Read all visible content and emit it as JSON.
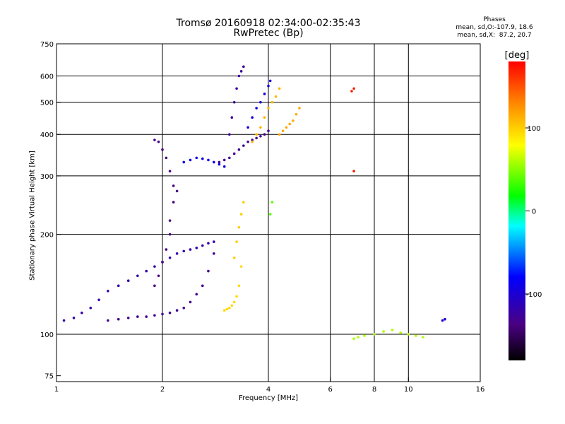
{
  "chart_data": {
    "type": "scatter",
    "title": "Tromsø 20160918 02:34:00-02:35:43",
    "subtitle": "RwPretec (Bp)",
    "xlabel": "Frequency [MHz]",
    "ylabel": "Stationary phase Virtual Height [km]",
    "x_scale": "log",
    "y_scale": "log",
    "xlim": [
      1,
      16
    ],
    "ylim": [
      72,
      750
    ],
    "x_ticks": [
      1,
      2,
      4,
      6,
      8,
      10,
      16
    ],
    "y_ticks": [
      75,
      100,
      200,
      300,
      400,
      500,
      600,
      750
    ],
    "grid_x": [
      2,
      4,
      6,
      8,
      10
    ],
    "grid_y": [
      100,
      200,
      300,
      400,
      500,
      600
    ],
    "grid": true,
    "stats": {
      "title": "Phases",
      "line_o": "mean, sd,O:-107.9, 18.6",
      "line_x": "mean, sd,X:  87.2, 20.7"
    },
    "colorbar": {
      "label": "[deg]",
      "ticks": [
        100,
        0,
        -100
      ],
      "range": [
        -180,
        180
      ]
    },
    "series": [
      {
        "x": [
          1.05,
          1.12,
          1.18,
          1.25,
          1.32,
          1.4,
          1.5,
          1.6,
          1.7,
          1.8,
          1.9,
          2.0,
          2.1,
          2.2,
          2.3,
          2.4,
          2.5,
          2.6,
          2.7,
          2.8
        ],
        "y": [
          110,
          112,
          116,
          120,
          127,
          135,
          140,
          145,
          150,
          155,
          160,
          165,
          170,
          175,
          178,
          180,
          182,
          185,
          188,
          190
        ],
        "phase": -120
      },
      {
        "x": [
          1.4,
          1.5,
          1.6,
          1.7,
          1.8,
          1.9,
          2.0,
          2.1,
          2.2,
          2.3,
          2.4,
          2.5,
          2.6,
          2.7,
          2.8
        ],
        "y": [
          110,
          111,
          112,
          113,
          113,
          114,
          115,
          116,
          118,
          120,
          125,
          132,
          140,
          155,
          175
        ],
        "phase": -130
      },
      {
        "x": [
          1.9,
          1.95,
          2.0,
          2.05,
          2.1,
          2.1,
          2.15,
          2.15,
          2.1,
          2.05,
          2.0,
          1.95,
          1.9,
          2.2
        ],
        "y": [
          140,
          150,
          165,
          180,
          200,
          220,
          250,
          280,
          310,
          340,
          360,
          380,
          385,
          270
        ],
        "phase": -135
      },
      {
        "x": [
          2.3,
          2.4,
          2.5,
          2.6,
          2.7,
          2.8,
          2.9,
          3.0
        ],
        "y": [
          330,
          335,
          340,
          338,
          335,
          330,
          325,
          320
        ],
        "phase": -90
      },
      {
        "x": [
          2.9,
          3.0,
          3.1,
          3.2,
          3.3,
          3.4,
          3.5,
          3.6,
          3.7,
          3.8,
          3.9,
          4.0
        ],
        "y": [
          330,
          335,
          340,
          350,
          360,
          370,
          380,
          385,
          390,
          395,
          400,
          410
        ],
        "phase": -130
      },
      {
        "x": [
          3.1,
          3.15,
          3.2,
          3.25,
          3.3,
          3.35,
          3.4
        ],
        "y": [
          400,
          450,
          500,
          550,
          600,
          620,
          640
        ],
        "phase": -125
      },
      {
        "x": [
          3.5,
          3.6,
          3.7,
          3.8,
          3.9,
          4.0,
          4.05
        ],
        "y": [
          420,
          450,
          480,
          500,
          530,
          560,
          580
        ],
        "phase": -95
      },
      {
        "x": [
          3.6,
          3.7,
          3.8,
          3.9,
          4.0,
          4.1,
          4.2,
          4.3
        ],
        "y": [
          380,
          400,
          420,
          450,
          480,
          500,
          520,
          550
        ],
        "phase": 110
      },
      {
        "x": [
          4.3,
          4.4,
          4.5,
          4.6,
          4.7,
          4.8,
          4.9
        ],
        "y": [
          400,
          410,
          420,
          430,
          440,
          460,
          480
        ],
        "phase": 115
      },
      {
        "x": [
          3.0,
          3.05,
          3.1,
          3.15,
          3.2,
          3.25,
          3.3,
          3.35
        ],
        "y": [
          118,
          119,
          120,
          122,
          125,
          130,
          140,
          160
        ],
        "phase": 95
      },
      {
        "x": [
          3.2,
          3.25,
          3.3,
          3.35,
          3.4
        ],
        "y": [
          170,
          190,
          210,
          230,
          250
        ],
        "phase": 100
      },
      {
        "x": [
          4.05,
          4.1
        ],
        "y": [
          230,
          250
        ],
        "phase": 40
      },
      {
        "x": [
          7.0,
          7.2,
          7.5,
          8.0,
          8.5,
          9.0,
          9.5,
          10.0,
          10.5,
          11.0
        ],
        "y": [
          97,
          98,
          99,
          100,
          102,
          103,
          101,
          100,
          99,
          98
        ],
        "phase": 60
      },
      {
        "x": [
          12.5,
          12.7
        ],
        "y": [
          110,
          111
        ],
        "phase": -100
      },
      {
        "x": [
          6.9,
          7.0,
          7.0
        ],
        "y": [
          540,
          550,
          310
        ],
        "phase": 170
      }
    ]
  }
}
